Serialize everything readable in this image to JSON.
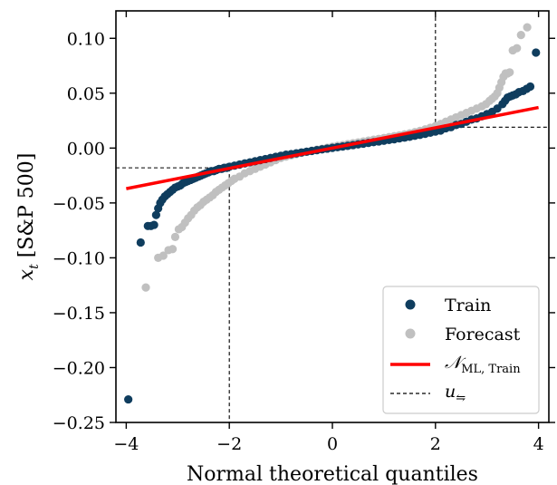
{
  "chart_data": {
    "type": "scatter",
    "title": "",
    "xlabel": "Normal theoretical quantiles",
    "ylabel_main": "x",
    "ylabel_sub": "t",
    "ylabel_rest": " [S&P 500]",
    "xlim": [
      -4.2,
      4.2
    ],
    "ylim": [
      -0.25,
      0.125
    ],
    "xticks": [
      -4,
      -2,
      0,
      2,
      4
    ],
    "xtick_labels": [
      "−4",
      "−2",
      "0",
      "2",
      "4"
    ],
    "yticks": [
      -0.25,
      -0.2,
      -0.15,
      -0.1,
      -0.05,
      0.0,
      0.05,
      0.1
    ],
    "ytick_labels": [
      "−0.25",
      "−0.20",
      "−0.15",
      "−0.10",
      "−0.05",
      "0.00",
      "0.05",
      "0.10"
    ],
    "grid": false,
    "legend_position": "bottom-right",
    "series": [
      {
        "name": "Train",
        "color": "#0f3d5e",
        "points": [
          [
            -3.96,
            -0.229
          ],
          [
            -3.72,
            -0.086
          ],
          [
            -3.58,
            -0.071
          ],
          [
            -3.52,
            -0.071
          ],
          [
            -3.46,
            -0.07
          ],
          [
            -3.42,
            -0.061
          ],
          [
            -3.38,
            -0.055
          ],
          [
            -3.34,
            -0.05
          ],
          [
            -3.3,
            -0.047
          ],
          [
            -3.25,
            -0.044
          ],
          [
            -3.2,
            -0.042
          ],
          [
            -3.15,
            -0.04
          ],
          [
            -3.1,
            -0.038
          ],
          [
            -3.05,
            -0.036
          ],
          [
            -3.0,
            -0.035
          ],
          [
            -2.95,
            -0.034
          ],
          [
            -2.9,
            -0.032
          ],
          [
            -2.85,
            -0.031
          ],
          [
            -2.8,
            -0.03
          ],
          [
            -2.75,
            -0.029
          ],
          [
            -2.7,
            -0.028
          ],
          [
            -2.65,
            -0.027
          ],
          [
            -2.6,
            -0.026
          ],
          [
            -2.55,
            -0.025
          ],
          [
            -2.5,
            -0.024
          ],
          [
            -2.45,
            -0.023
          ],
          [
            -2.4,
            -0.022
          ],
          [
            -2.35,
            -0.021
          ],
          [
            -2.3,
            -0.021
          ],
          [
            -2.25,
            -0.02
          ],
          [
            -2.2,
            -0.019
          ],
          [
            -2.15,
            -0.019
          ],
          [
            -2.1,
            -0.018
          ],
          [
            -2.05,
            -0.018
          ],
          [
            -2.0,
            -0.017
          ],
          [
            -1.9,
            -0.016
          ],
          [
            -1.8,
            -0.015
          ],
          [
            -1.7,
            -0.014
          ],
          [
            -1.6,
            -0.013
          ],
          [
            -1.5,
            -0.012
          ],
          [
            -1.4,
            -0.011
          ],
          [
            -1.3,
            -0.01
          ],
          [
            -1.2,
            -0.009
          ],
          [
            -1.1,
            -0.008
          ],
          [
            -1.0,
            -0.007
          ],
          [
            -0.9,
            -0.006
          ],
          [
            -0.8,
            -0.0055
          ],
          [
            -0.7,
            -0.0048
          ],
          [
            -0.6,
            -0.004
          ],
          [
            -0.5,
            -0.0033
          ],
          [
            -0.4,
            -0.0026
          ],
          [
            -0.3,
            -0.0019
          ],
          [
            -0.2,
            -0.0012
          ],
          [
            -0.1,
            -0.0005
          ],
          [
            0.0,
            0.0002
          ],
          [
            0.1,
            0.0008
          ],
          [
            0.2,
            0.0014
          ],
          [
            0.3,
            0.002
          ],
          [
            0.4,
            0.0027
          ],
          [
            0.5,
            0.0034
          ],
          [
            0.6,
            0.004
          ],
          [
            0.7,
            0.0047
          ],
          [
            0.8,
            0.0054
          ],
          [
            0.9,
            0.006
          ],
          [
            1.0,
            0.0067
          ],
          [
            1.1,
            0.0074
          ],
          [
            1.2,
            0.008
          ],
          [
            1.3,
            0.0088
          ],
          [
            1.4,
            0.0095
          ],
          [
            1.5,
            0.0103
          ],
          [
            1.6,
            0.0112
          ],
          [
            1.7,
            0.012
          ],
          [
            1.8,
            0.013
          ],
          [
            1.9,
            0.014
          ],
          [
            2.0,
            0.015
          ],
          [
            2.1,
            0.016
          ],
          [
            2.2,
            0.018
          ],
          [
            2.3,
            0.019
          ],
          [
            2.4,
            0.021
          ],
          [
            2.5,
            0.022
          ],
          [
            2.6,
            0.024
          ],
          [
            2.7,
            0.026
          ],
          [
            2.8,
            0.027
          ],
          [
            2.9,
            0.029
          ],
          [
            3.0,
            0.031
          ],
          [
            3.1,
            0.033
          ],
          [
            3.2,
            0.036
          ],
          [
            3.3,
            0.04
          ],
          [
            3.35,
            0.043
          ],
          [
            3.4,
            0.046
          ],
          [
            3.45,
            0.047
          ],
          [
            3.5,
            0.048
          ],
          [
            3.56,
            0.049
          ],
          [
            3.62,
            0.051
          ],
          [
            3.7,
            0.052
          ],
          [
            3.77,
            0.054
          ],
          [
            3.84,
            0.056
          ],
          [
            3.95,
            0.087
          ]
        ]
      },
      {
        "name": "Forecast",
        "color": "#c0c0c0",
        "points": [
          [
            -3.62,
            -0.127
          ],
          [
            -3.38,
            -0.1
          ],
          [
            -3.28,
            -0.098
          ],
          [
            -3.18,
            -0.093
          ],
          [
            -3.1,
            -0.092
          ],
          [
            -3.05,
            -0.081
          ],
          [
            -2.98,
            -0.074
          ],
          [
            -2.92,
            -0.072
          ],
          [
            -2.86,
            -0.068
          ],
          [
            -2.8,
            -0.064
          ],
          [
            -2.74,
            -0.061
          ],
          [
            -2.68,
            -0.057
          ],
          [
            -2.62,
            -0.054
          ],
          [
            -2.56,
            -0.052
          ],
          [
            -2.5,
            -0.049
          ],
          [
            -2.44,
            -0.047
          ],
          [
            -2.38,
            -0.045
          ],
          [
            -2.32,
            -0.043
          ],
          [
            -2.26,
            -0.04
          ],
          [
            -2.2,
            -0.038
          ],
          [
            -2.14,
            -0.036
          ],
          [
            -2.08,
            -0.034
          ],
          [
            -2.02,
            -0.032
          ],
          [
            -1.96,
            -0.03
          ],
          [
            -1.9,
            -0.028
          ],
          [
            -1.8,
            -0.026
          ],
          [
            -1.7,
            -0.023
          ],
          [
            -1.6,
            -0.021
          ],
          [
            -1.5,
            -0.019
          ],
          [
            -1.4,
            -0.017
          ],
          [
            -1.3,
            -0.015
          ],
          [
            -1.2,
            -0.013
          ],
          [
            -1.1,
            -0.011
          ],
          [
            -1.0,
            -0.009
          ],
          [
            -0.9,
            -0.0078
          ],
          [
            -0.8,
            -0.0066
          ],
          [
            -0.7,
            -0.0055
          ],
          [
            -0.6,
            -0.0044
          ],
          [
            -0.5,
            -0.0034
          ],
          [
            -0.4,
            -0.0024
          ],
          [
            -0.3,
            -0.0015
          ],
          [
            -0.2,
            -0.0006
          ],
          [
            -0.1,
            0.0003
          ],
          [
            0.0,
            0.0012
          ],
          [
            0.1,
            0.002
          ],
          [
            0.2,
            0.0028
          ],
          [
            0.3,
            0.0036
          ],
          [
            0.4,
            0.0044
          ],
          [
            0.5,
            0.0052
          ],
          [
            0.6,
            0.006
          ],
          [
            0.7,
            0.0068
          ],
          [
            0.8,
            0.0076
          ],
          [
            0.9,
            0.0084
          ],
          [
            1.0,
            0.0092
          ],
          [
            1.1,
            0.01
          ],
          [
            1.2,
            0.0108
          ],
          [
            1.3,
            0.0116
          ],
          [
            1.4,
            0.0125
          ],
          [
            1.5,
            0.0134
          ],
          [
            1.6,
            0.0145
          ],
          [
            1.7,
            0.0157
          ],
          [
            1.8,
            0.017
          ],
          [
            1.9,
            0.0185
          ],
          [
            2.0,
            0.02
          ],
          [
            2.1,
            0.022
          ],
          [
            2.2,
            0.024
          ],
          [
            2.3,
            0.026
          ],
          [
            2.4,
            0.028
          ],
          [
            2.5,
            0.03
          ],
          [
            2.6,
            0.032
          ],
          [
            2.7,
            0.034
          ],
          [
            2.8,
            0.036
          ],
          [
            2.9,
            0.038
          ],
          [
            2.98,
            0.04
          ],
          [
            3.05,
            0.043
          ],
          [
            3.1,
            0.045
          ],
          [
            3.15,
            0.047
          ],
          [
            3.2,
            0.05
          ],
          [
            3.24,
            0.055
          ],
          [
            3.28,
            0.06
          ],
          [
            3.32,
            0.065
          ],
          [
            3.36,
            0.068
          ],
          [
            3.4,
            0.068
          ],
          [
            3.44,
            0.069
          ],
          [
            3.5,
            0.089
          ],
          [
            3.58,
            0.091
          ],
          [
            3.66,
            0.103
          ],
          [
            3.78,
            0.11
          ]
        ]
      }
    ],
    "fit_line": {
      "name_main": "𝒩",
      "name_sub": "ML, Train",
      "color": "#ff0000",
      "x": [
        -4.0,
        4.0
      ],
      "y": [
        -0.037,
        0.037
      ]
    },
    "threshold": {
      "name_main": "u",
      "name_sub": "⇋",
      "color": "#000000",
      "x": [
        -2.0,
        2.0
      ],
      "y": [
        -0.018,
        0.019
      ]
    }
  }
}
